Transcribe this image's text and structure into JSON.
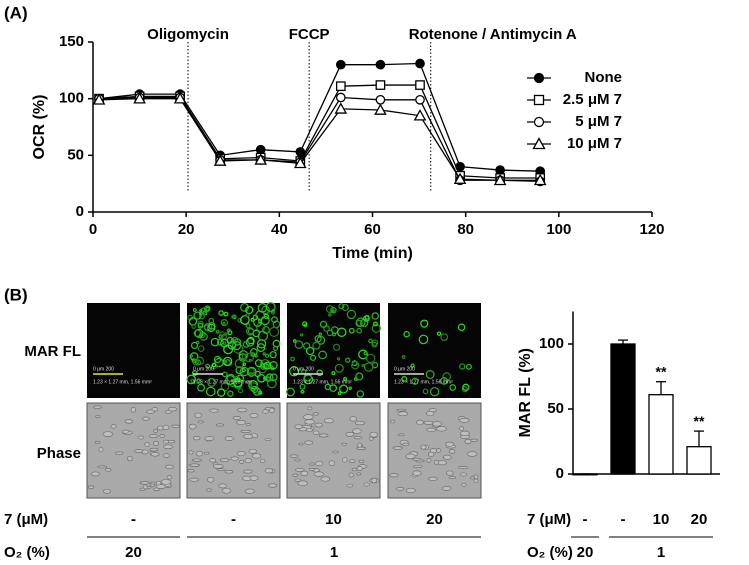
{
  "panel_a": {
    "label": "(A)"
  },
  "chart_data": [
    {
      "type": "line",
      "xlabel": "Time (min)",
      "ylabel": "OCR (%)",
      "xlim": [
        0,
        120
      ],
      "xticks": [
        0,
        20,
        40,
        60,
        80,
        100,
        120
      ],
      "ylim": [
        0,
        150
      ],
      "yticks": [
        0,
        50,
        100,
        150
      ],
      "x": [
        1.3,
        10,
        18.7,
        27.3,
        36,
        44.5,
        53.2,
        61.7,
        70.2,
        78.8,
        87.4,
        96
      ],
      "injections": [
        {
          "label": "Oligomycin",
          "x": 20.4
        },
        {
          "label": "FCCP",
          "x": 46.4
        },
        {
          "label": "Rotenone / Antimycin A",
          "x": 72.5
        }
      ],
      "legend": "right",
      "series": [
        {
          "name": "None",
          "color": "#000000",
          "marker": "filled-circle",
          "values": [
            100,
            104,
            104,
            50,
            55,
            53,
            130,
            130,
            131,
            40,
            37,
            36
          ]
        },
        {
          "name": "2.5 μM 7",
          "color": "#000000",
          "marker": "open-square",
          "values": [
            100,
            102,
            102,
            47,
            48,
            45,
            111,
            112,
            112,
            32,
            30,
            30
          ]
        },
        {
          "name": "5 μM 7",
          "color": "#000000",
          "marker": "open-circle",
          "values": [
            100,
            101,
            101,
            46,
            46,
            44,
            101,
            99,
            99,
            28,
            28,
            27
          ]
        },
        {
          "name": "10 μM 7",
          "color": "#000000",
          "marker": "open-triangle",
          "values": [
            99,
            100,
            100,
            45,
            46,
            43,
            91,
            90,
            85,
            29,
            28,
            28
          ]
        }
      ]
    },
    {
      "type": "bar",
      "ylabel": "MAR FL (%)",
      "ylim": [
        0,
        125
      ],
      "yticks": [
        0,
        50,
        100
      ],
      "row_label": "7 (μM)",
      "categories": [
        "-",
        "-",
        "10",
        "20"
      ],
      "values": [
        0,
        100,
        61,
        21
      ],
      "errors": [
        0,
        3,
        10,
        12
      ],
      "colors": [
        "#ffffff",
        "#000000",
        "#ffffff",
        "#ffffff"
      ],
      "annotations": [
        null,
        null,
        "**",
        "**"
      ],
      "group_label": "O₂ (%)",
      "groups": [
        {
          "label": "20",
          "count": 1
        },
        {
          "label": "1",
          "count": 3
        }
      ]
    }
  ],
  "panel_b": {
    "label": "(B)",
    "rows": [
      "MAR FL",
      "Phase"
    ],
    "row_label": "7 (μM)",
    "columns": [
      "-",
      "-",
      "10",
      "20"
    ],
    "group_label": "O₂ (%)",
    "groups": [
      {
        "label": "20",
        "count": 1
      },
      {
        "label": "1",
        "count": 3
      }
    ],
    "scale": "0   μm   200",
    "caption": "1.23 × 1.27 mm, 1.56 mm²"
  }
}
